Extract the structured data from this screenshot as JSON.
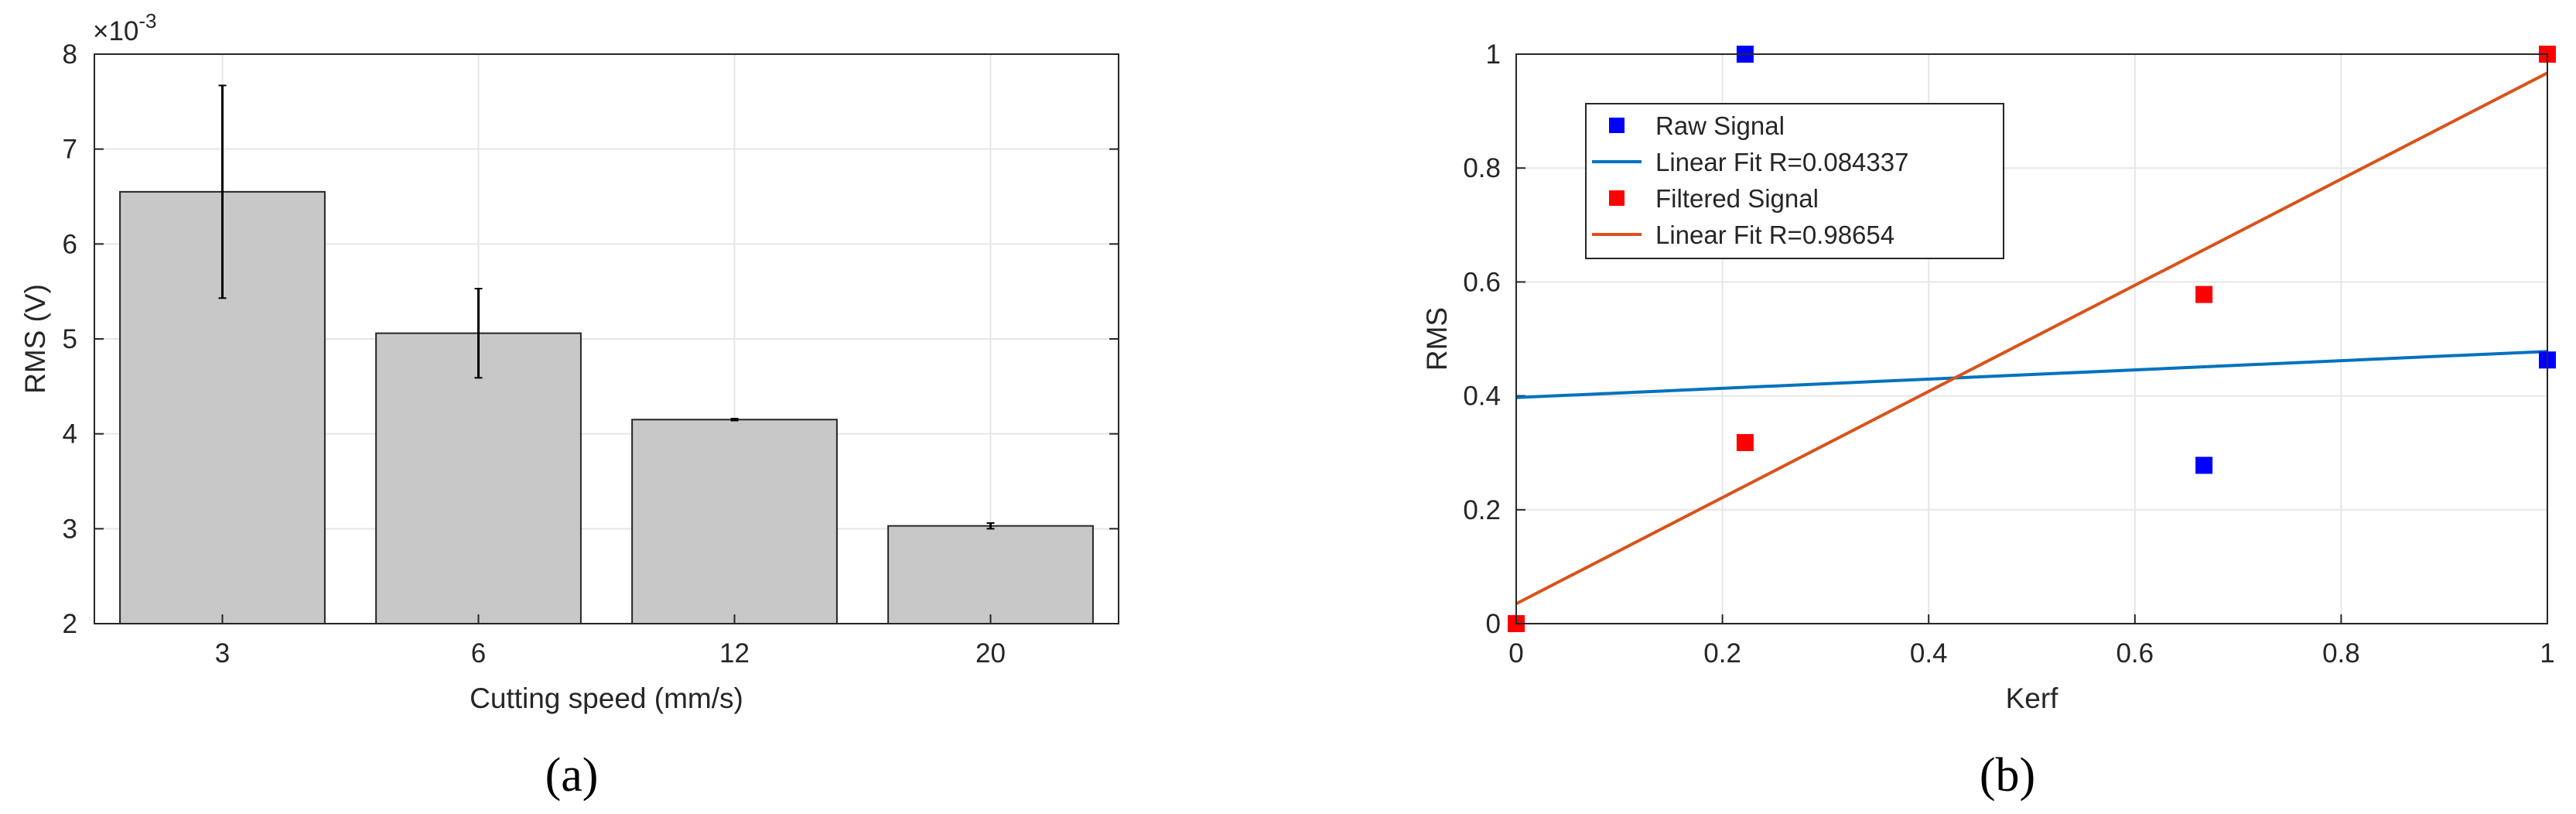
{
  "panels": {
    "a": {
      "label": "(a)"
    },
    "b": {
      "label": "(b)"
    }
  },
  "chart_data": [
    {
      "type": "bar",
      "categories": [
        "3",
        "6",
        "12",
        "20"
      ],
      "values": [
        0.00655,
        0.00506,
        0.00415,
        0.00303
      ],
      "error_low": [
        0.00543,
        0.00459,
        0.00414,
        0.003
      ],
      "error_high": [
        0.00767,
        0.00553,
        0.00416,
        0.00306
      ],
      "title": "",
      "xlabel": "Cutting speed (mm/s)",
      "ylabel": "RMS (V)",
      "ylim": [
        0.002,
        0.008
      ],
      "y_ticks": [
        0.002,
        0.003,
        0.004,
        0.005,
        0.006,
        0.007,
        0.008
      ],
      "y_tick_labels": [
        "2",
        "3",
        "4",
        "5",
        "6",
        "7",
        "8"
      ],
      "y_multiplier_base": "×10",
      "y_multiplier_exponent": "-3",
      "bar_color": "#c8c8c8",
      "grid": true
    },
    {
      "type": "scatter",
      "title": "",
      "xlabel": "Kerf",
      "ylabel": "RMS",
      "xlim": [
        0,
        1
      ],
      "ylim": [
        0,
        1
      ],
      "x_ticks": [
        0,
        0.2,
        0.4,
        0.6,
        0.8,
        1
      ],
      "x_tick_labels": [
        "0",
        "0.2",
        "0.4",
        "0.6",
        "0.8",
        "1"
      ],
      "y_ticks": [
        0,
        0.2,
        0.4,
        0.6,
        0.8,
        1
      ],
      "y_tick_labels": [
        "0",
        "0.2",
        "0.4",
        "0.6",
        "0.8",
        "1"
      ],
      "grid": true,
      "legend_position": "top-left",
      "series": [
        {
          "name": "Raw Signal",
          "kind": "points",
          "color": "#0000ff",
          "x": [
            0.222,
            0.667,
            1.0
          ],
          "y": [
            1.0,
            0.278,
            0.463
          ]
        },
        {
          "name": "Linear Fit R=0.084337",
          "kind": "line",
          "color": "#0072bd",
          "x": [
            0,
            1
          ],
          "y": [
            0.397,
            0.478
          ]
        },
        {
          "name": "Filtered Signal",
          "kind": "points",
          "color": "#ff0000",
          "x": [
            0.0,
            0.222,
            0.667,
            1.0
          ],
          "y": [
            0.0,
            0.318,
            0.578,
            1.0
          ]
        },
        {
          "name": "Linear Fit R=0.98654",
          "kind": "line",
          "color": "#d95319",
          "x": [
            0,
            1
          ],
          "y": [
            0.035,
            0.967
          ]
        }
      ]
    }
  ]
}
